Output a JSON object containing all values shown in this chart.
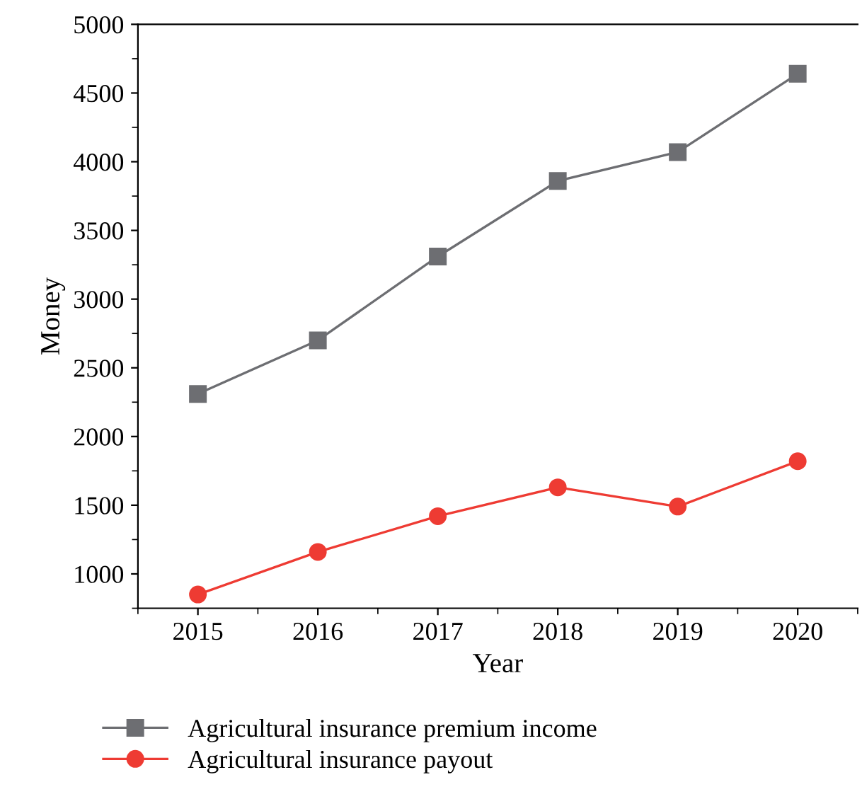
{
  "chart_data": {
    "type": "line",
    "xlabel": "Year",
    "ylabel": "Money",
    "x": [
      2015,
      2016,
      2017,
      2018,
      2019,
      2020
    ],
    "series": [
      {
        "name": "Agricultural insurance premium income",
        "color": "#6d6e72",
        "marker": "square",
        "values": [
          2310,
          2700,
          3310,
          3860,
          4070,
          4640
        ]
      },
      {
        "name": "Agricultural insurance payout",
        "color": "#ee3b33",
        "marker": "circle",
        "values": [
          850,
          1160,
          1420,
          1630,
          1490,
          1820
        ]
      }
    ],
    "xlim": [
      2014.5,
      2020.5
    ],
    "xticks": [
      2015,
      2016,
      2017,
      2018,
      2019,
      2020
    ],
    "ylim": [
      750,
      5000
    ],
    "yticks": [
      1000,
      1500,
      2000,
      2500,
      3000,
      3500,
      4000,
      4500,
      5000
    ],
    "grid": false,
    "legend": "bottom",
    "line_style": "solid"
  }
}
